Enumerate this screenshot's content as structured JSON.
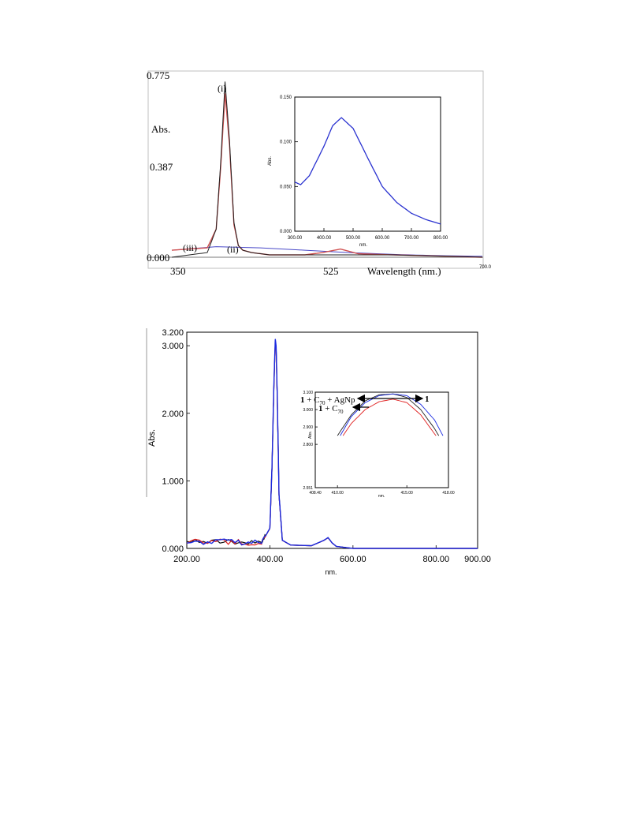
{
  "figure1": {
    "main": {
      "type": "line",
      "ylabel": "Abs.",
      "xlabel": "Wavelength (nm.)",
      "x_ticks": [
        "350",
        "525"
      ],
      "x_end_label": "700.0",
      "y_ticks": [
        "0.775",
        "0.387",
        "0.000"
      ],
      "xlim": [
        350,
        700
      ],
      "ylim": [
        0,
        0.775
      ],
      "series_labels": [
        "(i)",
        "(ii)",
        "(iii)"
      ],
      "colors": {
        "i": "#222222",
        "ii": "#d05050",
        "iii": "#4848c8"
      }
    },
    "inset": {
      "type": "line",
      "ylabel": "Abs.",
      "xlabel": "nm.",
      "x_ticks": [
        "300.00",
        "400.00",
        "500.00",
        "600.00",
        "700.00",
        "800.00"
      ],
      "y_ticks": [
        "0.150",
        "0.100",
        "0.050",
        "0.000"
      ],
      "xlim": [
        300,
        800
      ],
      "ylim": [
        0,
        0.15
      ],
      "color": "#2a32d0"
    }
  },
  "figure2": {
    "main": {
      "type": "line",
      "ylabel": "Abs.",
      "xlabel": "nm.",
      "x_ticks": [
        "200.00",
        "400.00",
        "600.00",
        "800.00",
        "900.00"
      ],
      "y_ticks": [
        "3.200",
        "3.000",
        "2.000",
        "1.000",
        "0.000"
      ],
      "xlim": [
        200,
        900
      ],
      "ylim": [
        0,
        3.2
      ],
      "colors": {
        "black": "#111111",
        "red": "#e02020",
        "blue": "#1a2ae0"
      }
    },
    "inset": {
      "type": "line",
      "ylabel": "Abs.",
      "xlabel": "nm.",
      "x_ticks": [
        "408.40",
        "410.00",
        "415.00",
        "418.00"
      ],
      "y_ticks": [
        "3.100",
        "3.000",
        "2.900",
        "2.800",
        "2.551"
      ],
      "xlim": [
        408.4,
        418
      ],
      "ylim": [
        2.551,
        3.1
      ],
      "labels": {
        "c70_agnp": "1 + C70 + AgNp",
        "one": "1",
        "c70": "1 + C70"
      }
    }
  },
  "chart_data": [
    {
      "type": "line",
      "title": "",
      "xlabel": "Wavelength (nm.)",
      "ylabel": "Abs.",
      "xlim": [
        350,
        700
      ],
      "ylim": [
        0,
        0.775
      ],
      "series": [
        {
          "name": "(i)",
          "x": [
            350,
            390,
            400,
            405,
            410,
            415,
            420,
            425,
            430,
            440,
            460,
            500,
            520,
            540,
            560,
            600,
            700
          ],
          "y": [
            0.0,
            0.02,
            0.12,
            0.4,
            0.75,
            0.5,
            0.15,
            0.05,
            0.03,
            0.02,
            0.01,
            0.01,
            0.01,
            0.01,
            0.01,
            0.01,
            0.0
          ]
        },
        {
          "name": "(ii)",
          "x": [
            350,
            390,
            400,
            405,
            410,
            415,
            420,
            425,
            430,
            440,
            460,
            500,
            520,
            540,
            560,
            600,
            700
          ],
          "y": [
            0.03,
            0.04,
            0.12,
            0.38,
            0.7,
            0.48,
            0.14,
            0.05,
            0.03,
            0.02,
            0.01,
            0.01,
            0.02,
            0.035,
            0.015,
            0.01,
            0.0
          ]
        },
        {
          "name": "(iii)",
          "x": [
            350,
            400,
            450,
            500,
            550,
            600,
            650,
            700
          ],
          "y": [
            0.03,
            0.045,
            0.04,
            0.03,
            0.02,
            0.012,
            0.007,
            0.004
          ]
        }
      ]
    },
    {
      "type": "line",
      "title": "",
      "xlabel": "nm.",
      "ylabel": "Abs.",
      "xlim": [
        300,
        800
      ],
      "ylim": [
        0,
        0.15
      ],
      "series": [
        {
          "x": [
            300,
            320,
            350,
            400,
            430,
            460,
            500,
            550,
            600,
            650,
            700,
            750,
            800
          ],
          "y": [
            0.055,
            0.052,
            0.062,
            0.095,
            0.118,
            0.127,
            0.115,
            0.082,
            0.05,
            0.032,
            0.02,
            0.013,
            0.008
          ]
        }
      ]
    },
    {
      "type": "line",
      "title": "",
      "xlabel": "nm.",
      "ylabel": "Abs.",
      "xlim": [
        200,
        900
      ],
      "ylim": [
        0,
        3.2
      ],
      "series": [
        {
          "x": [
            200,
            300,
            380,
            400,
            405,
            410,
            413,
            415,
            418,
            422,
            430,
            450,
            500,
            530,
            540,
            550,
            560,
            600,
            700,
            900
          ],
          "y": [
            0.1,
            0.1,
            0.08,
            0.3,
            1.2,
            2.5,
            3.1,
            3.0,
            2.2,
            0.8,
            0.12,
            0.05,
            0.04,
            0.12,
            0.16,
            0.08,
            0.03,
            0.0,
            0.0,
            0.0
          ]
        }
      ]
    },
    {
      "type": "line",
      "title": "",
      "xlabel": "nm.",
      "ylabel": "Abs.",
      "xlim": [
        408.4,
        418
      ],
      "ylim": [
        2.551,
        3.1
      ],
      "series": [
        {
          "name": "1",
          "x": [
            410.2,
            411,
            412,
            413,
            414,
            415,
            416,
            417,
            417.6
          ],
          "y": [
            2.85,
            2.96,
            3.04,
            3.08,
            3.09,
            3.08,
            3.03,
            2.94,
            2.85
          ]
        },
        {
          "name": "1 + C70 + AgNp",
          "x": [
            410.0,
            411,
            412,
            413,
            414,
            415,
            416,
            417,
            417.3
          ],
          "y": [
            2.85,
            2.97,
            3.05,
            3.085,
            3.09,
            3.07,
            3.0,
            2.89,
            2.85
          ]
        },
        {
          "name": "1 + C70",
          "x": [
            410.4,
            411,
            412,
            413,
            414,
            415,
            416,
            417,
            417.1
          ],
          "y": [
            2.85,
            2.92,
            3.0,
            3.045,
            3.06,
            3.04,
            2.97,
            2.86,
            2.85
          ]
        }
      ]
    }
  ]
}
